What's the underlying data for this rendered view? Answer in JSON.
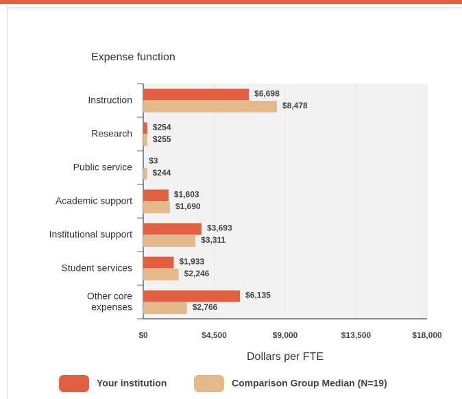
{
  "chart_data": {
    "type": "bar",
    "orientation": "horizontal",
    "y_axis_title": "Expense function",
    "x_axis_title": "Dollars per FTE",
    "categories": [
      "Instruction",
      "Research",
      "Public service",
      "Academic support",
      "Institutional support",
      "Student services",
      "Other core\nexpenses"
    ],
    "series": [
      {
        "name": "Your institution",
        "color": "#e2603f",
        "values": [
          6698,
          254,
          3,
          1603,
          3693,
          1933,
          6135
        ],
        "value_labels": [
          "$6,698",
          "$254",
          "$3",
          "$1,603",
          "$3,693",
          "$1,933",
          "$6,135"
        ]
      },
      {
        "name": "Comparison Group Median (N=19)",
        "color": "#e6b98a",
        "values": [
          8478,
          255,
          244,
          1690,
          3311,
          2246,
          2766
        ],
        "value_labels": [
          "$8,478",
          "$255",
          "$244",
          "$1,690",
          "$3,311",
          "$2,246",
          "$2,766"
        ]
      }
    ],
    "xlim": [
      0,
      18000
    ],
    "xticks": [
      {
        "value": 0,
        "label": "$0"
      },
      {
        "value": 4500,
        "label": "$4,500"
      },
      {
        "value": 9000,
        "label": "$9,000"
      },
      {
        "value": 13500,
        "label": "$13,500"
      },
      {
        "value": 18000,
        "label": "$18,000"
      }
    ],
    "grid": true,
    "legend": "bottom"
  }
}
